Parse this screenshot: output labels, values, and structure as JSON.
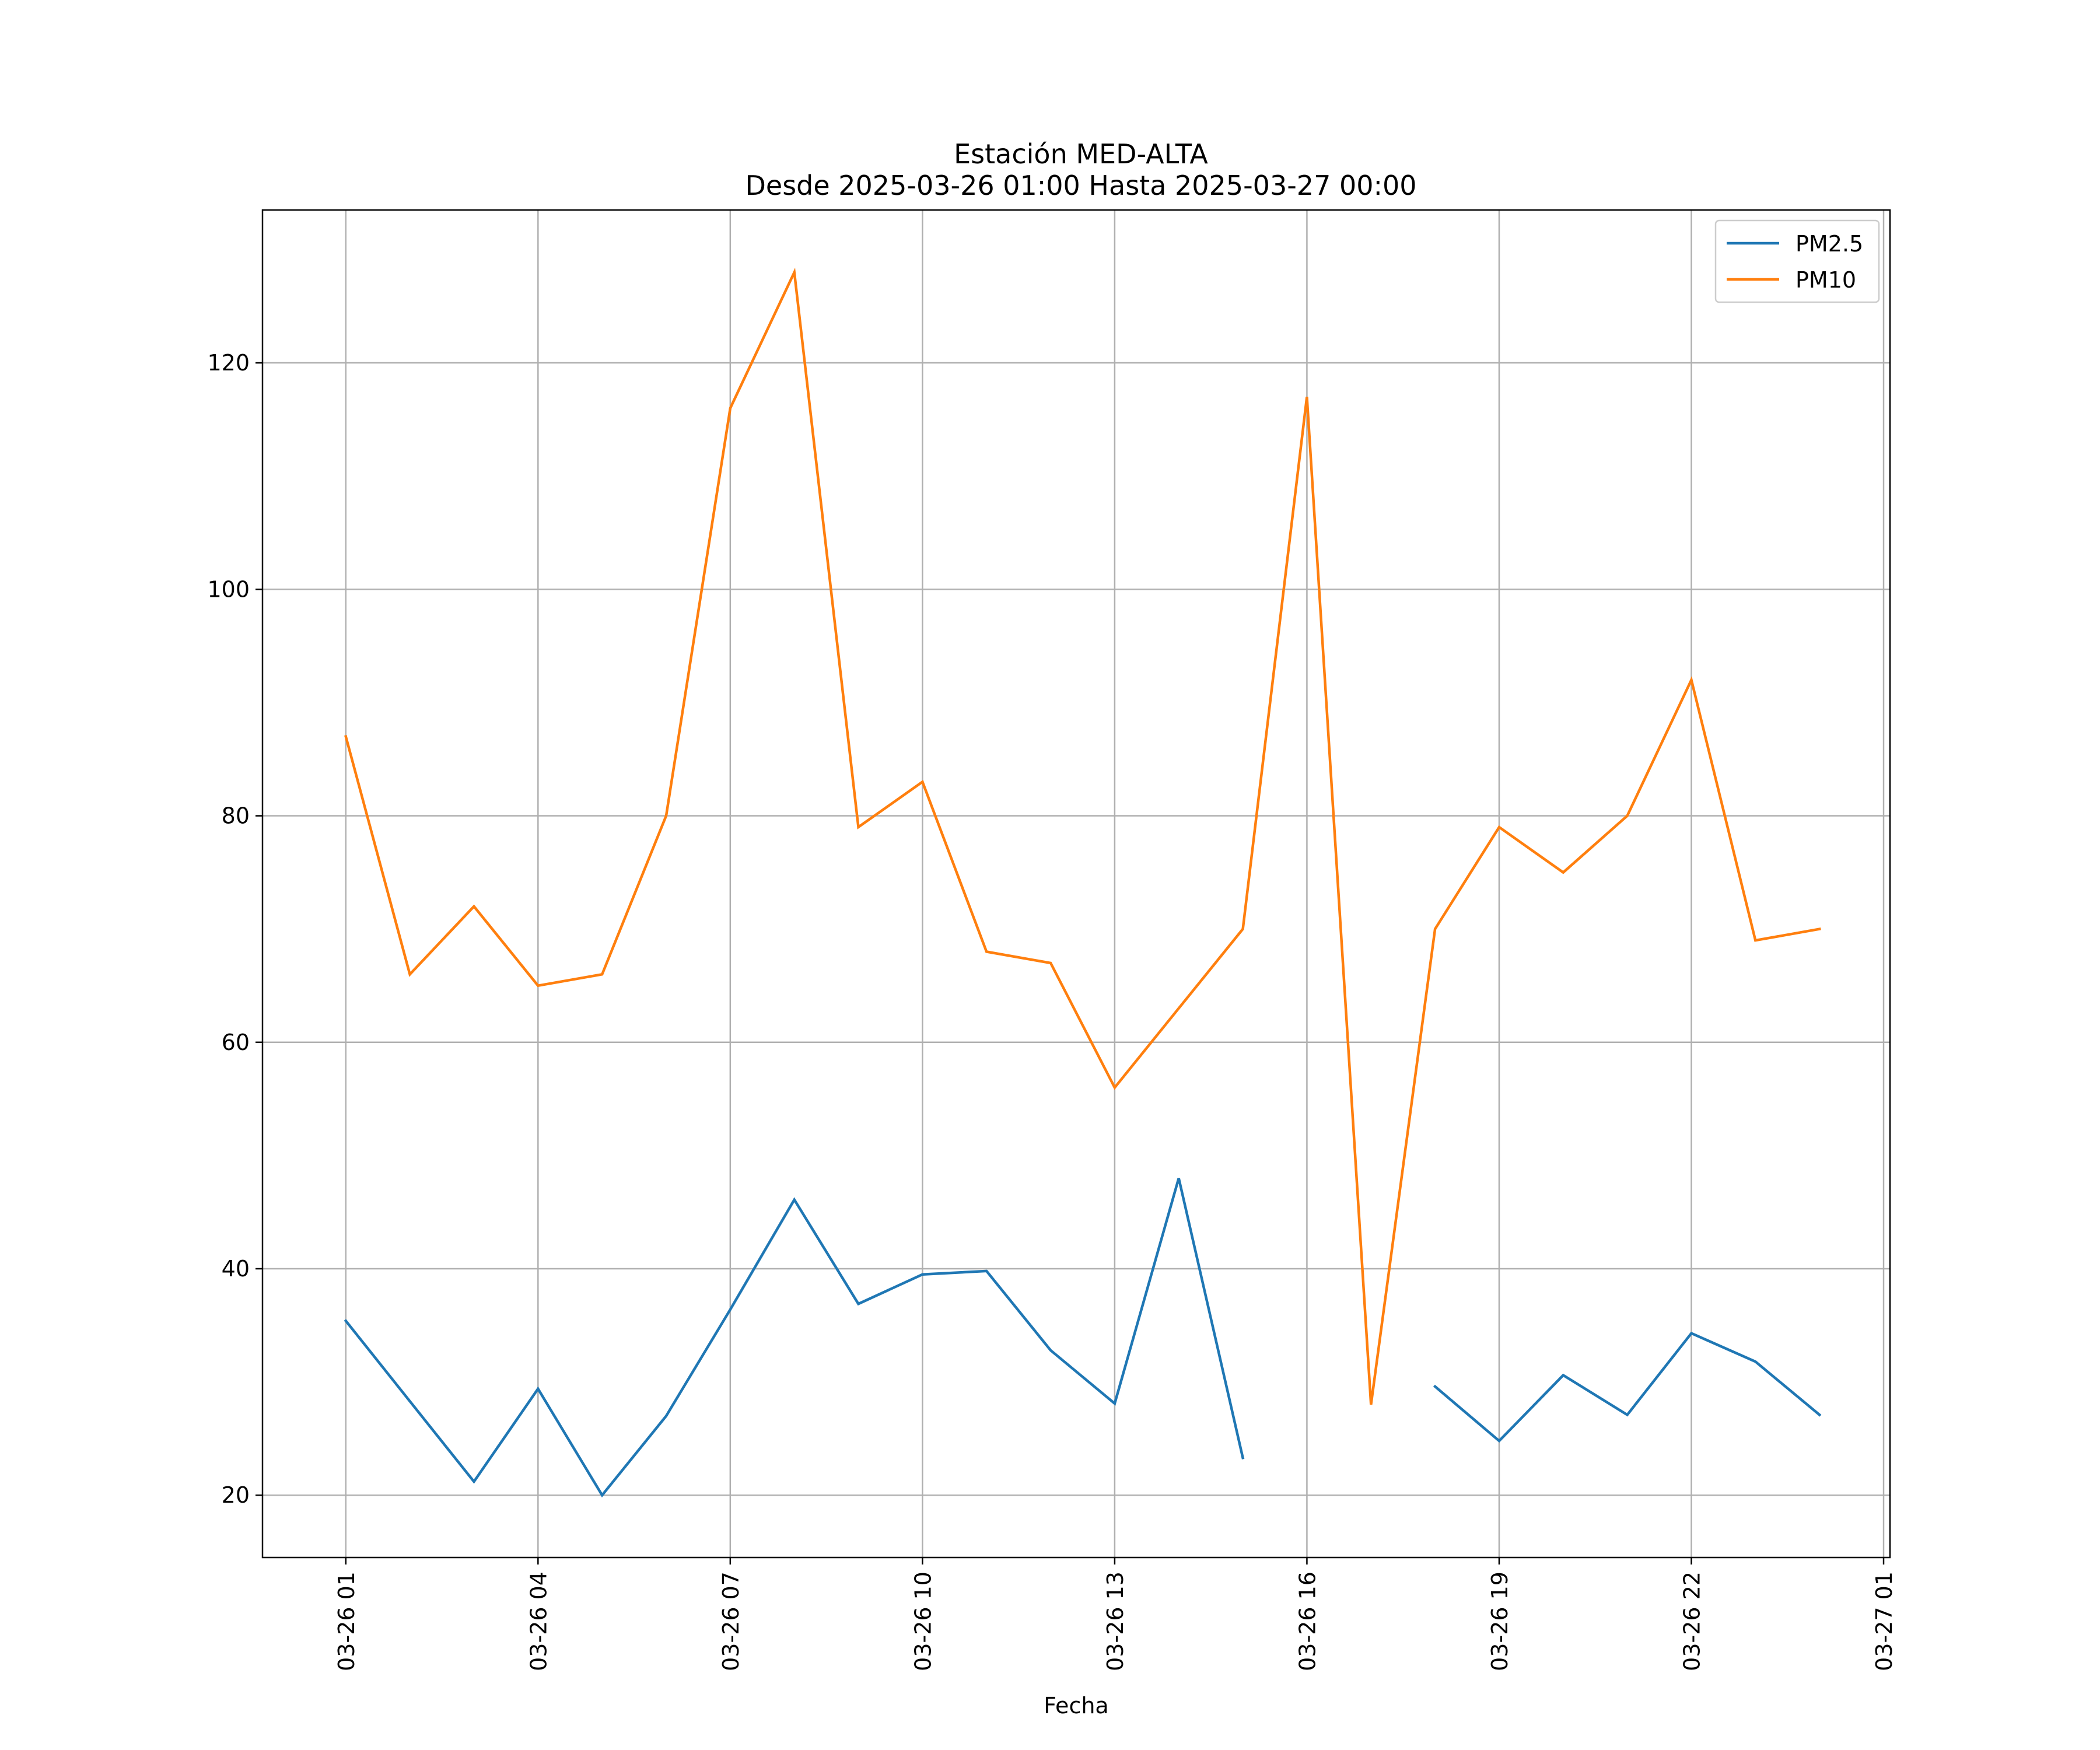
{
  "chart_data": {
    "type": "line",
    "title": "Estación MED-ALTA",
    "subtitle": "Desde 2025-03-26 01:00 Hasta 2025-03-27 00:00",
    "xlabel": "Fecha",
    "ylabel": "",
    "x": [
      "01:00",
      "02:00",
      "03:00",
      "04:00",
      "05:00",
      "06:00",
      "07:00",
      "08:00",
      "09:00",
      "10:00",
      "11:00",
      "12:00",
      "13:00",
      "14:00",
      "15:00",
      "16:00",
      "17:00",
      "18:00",
      "19:00",
      "20:00",
      "21:00",
      "22:00",
      "23:00",
      "00:00"
    ],
    "x_hours": [
      1,
      2,
      3,
      4,
      5,
      6,
      7,
      8,
      9,
      10,
      11,
      12,
      13,
      14,
      15,
      16,
      17,
      18,
      19,
      20,
      21,
      22,
      23,
      24
    ],
    "xlim_hours": [
      -0.3,
      25.1
    ],
    "xticks": [
      {
        "hour": 1,
        "label": "03-26 01"
      },
      {
        "hour": 4,
        "label": "03-26 04"
      },
      {
        "hour": 7,
        "label": "03-26 07"
      },
      {
        "hour": 10,
        "label": "03-26 10"
      },
      {
        "hour": 13,
        "label": "03-26 13"
      },
      {
        "hour": 16,
        "label": "03-26 16"
      },
      {
        "hour": 19,
        "label": "03-26 19"
      },
      {
        "hour": 22,
        "label": "03-26 22"
      },
      {
        "hour": 25,
        "label": "03-27 01"
      }
    ],
    "ylim": [
      14.5,
      133.5
    ],
    "yticks": [
      20,
      40,
      60,
      80,
      100,
      120
    ],
    "grid": true,
    "legend_position": "top-right",
    "series": [
      {
        "name": "PM2.5",
        "color": "#1f77b4",
        "values": [
          35.4,
          28.3,
          21.2,
          29.4,
          20.0,
          27.0,
          36.4,
          46.1,
          36.9,
          39.5,
          39.8,
          32.8,
          28.1,
          48.0,
          23.3,
          null,
          null,
          29.6,
          24.8,
          30.6,
          27.1,
          34.3,
          31.8,
          27.1
        ]
      },
      {
        "name": "PM10",
        "color": "#ff7f0e",
        "values": [
          87,
          66,
          72,
          65,
          66,
          80,
          116,
          128,
          79,
          83,
          68,
          67,
          56,
          63,
          70,
          117,
          28,
          70,
          79,
          75,
          80,
          92,
          69,
          70
        ]
      }
    ]
  }
}
